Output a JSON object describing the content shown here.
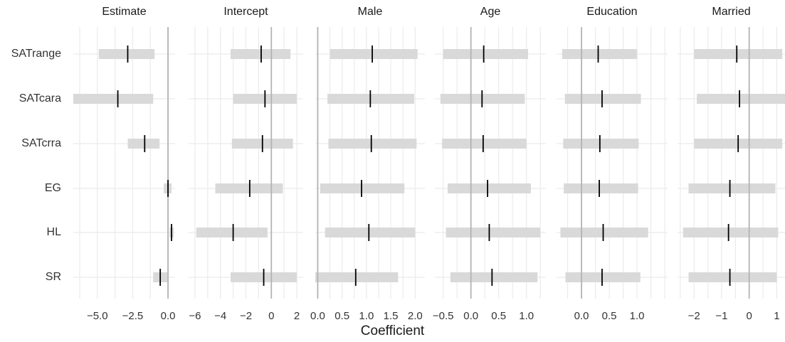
{
  "chart_data": {
    "type": "interval",
    "xlabel": "Coefficient",
    "rows": [
      "SATrange",
      "SATcara",
      "SATcrra",
      "EG",
      "HL",
      "SR"
    ],
    "colors": {
      "interval": "#d9d9d9",
      "zero_line": "#b3b3b3",
      "grid": "#ebebeb",
      "estimate": "#000000"
    },
    "panels": [
      {
        "title": "Estimate",
        "xlim": [
          -6.7,
          0.5
        ],
        "ticks": [
          -5.0,
          -2.5,
          0.0
        ],
        "tick_labels": [
          "−5.0",
          "−2.5",
          "0.0"
        ],
        "series": [
          {
            "row": "SATrange",
            "estimate": -2.85,
            "low": -4.9,
            "high": -0.95
          },
          {
            "row": "SATcara",
            "estimate": -3.55,
            "low": -6.7,
            "high": -1.05
          },
          {
            "row": "SATcrra",
            "estimate": -1.65,
            "low": -2.85,
            "high": -0.6
          },
          {
            "row": "EG",
            "estimate": 0.0,
            "low": -0.3,
            "high": 0.25
          },
          {
            "row": "HL",
            "estimate": 0.25,
            "low": 0.1,
            "high": 0.4
          },
          {
            "row": "SR",
            "estimate": -0.55,
            "low": -1.05,
            "high": -0.05
          }
        ]
      },
      {
        "title": "Intercept",
        "xlim": [
          -6.5,
          2.5
        ],
        "ticks": [
          -6,
          -4,
          -2,
          0,
          2
        ],
        "tick_labels": [
          "−6",
          "−4",
          "−2",
          "0",
          "2"
        ],
        "series": [
          {
            "row": "SATrange",
            "estimate": -0.8,
            "low": -3.2,
            "high": 1.5
          },
          {
            "row": "SATcara",
            "estimate": -0.5,
            "low": -3.0,
            "high": 2.0
          },
          {
            "row": "SATcrra",
            "estimate": -0.7,
            "low": -3.1,
            "high": 1.7
          },
          {
            "row": "EG",
            "estimate": -1.7,
            "low": -4.4,
            "high": 0.9
          },
          {
            "row": "HL",
            "estimate": -3.0,
            "low": -5.9,
            "high": -0.3
          },
          {
            "row": "SR",
            "estimate": -0.6,
            "low": -3.2,
            "high": 2.0
          }
        ]
      },
      {
        "title": "Male",
        "xlim": [
          -0.05,
          2.2
        ],
        "ticks": [
          0.0,
          0.5,
          1.0,
          1.5,
          2.0
        ],
        "tick_labels": [
          "0.0",
          "0.5",
          "1.0",
          "1.5",
          "2.0"
        ],
        "series": [
          {
            "row": "SATrange",
            "estimate": 1.12,
            "low": 0.25,
            "high": 2.05
          },
          {
            "row": "SATcara",
            "estimate": 1.08,
            "low": 0.2,
            "high": 1.98
          },
          {
            "row": "SATcrra",
            "estimate": 1.1,
            "low": 0.22,
            "high": 2.03
          },
          {
            "row": "EG",
            "estimate": 0.9,
            "low": 0.05,
            "high": 1.78
          },
          {
            "row": "HL",
            "estimate": 1.05,
            "low": 0.15,
            "high": 2.0
          },
          {
            "row": "SR",
            "estimate": 0.78,
            "low": -0.08,
            "high": 1.65
          }
        ]
      },
      {
        "title": "Age",
        "xlim": [
          -0.65,
          1.35
        ],
        "ticks": [
          -0.5,
          0.0,
          0.5,
          1.0
        ],
        "tick_labels": [
          "−0.5",
          "0.0",
          "0.5",
          "1.0"
        ],
        "series": [
          {
            "row": "SATrange",
            "estimate": 0.23,
            "low": -0.5,
            "high": 1.03
          },
          {
            "row": "SATcara",
            "estimate": 0.2,
            "low": -0.55,
            "high": 0.97
          },
          {
            "row": "SATcrra",
            "estimate": 0.22,
            "low": -0.52,
            "high": 1.0
          },
          {
            "row": "EG",
            "estimate": 0.3,
            "low": -0.42,
            "high": 1.08
          },
          {
            "row": "HL",
            "estimate": 0.33,
            "low": -0.45,
            "high": 1.25
          },
          {
            "row": "SR",
            "estimate": 0.38,
            "low": -0.37,
            "high": 1.2
          }
        ]
      },
      {
        "title": "Education",
        "xlim": [
          -0.45,
          1.55
        ],
        "ticks": [
          0.0,
          0.5,
          1.0
        ],
        "tick_labels": [
          "0.0",
          "0.5",
          "1.0"
        ],
        "series": [
          {
            "row": "SATrange",
            "estimate": 0.3,
            "low": -0.35,
            "high": 1.0
          },
          {
            "row": "SATcara",
            "estimate": 0.37,
            "low": -0.3,
            "high": 1.07
          },
          {
            "row": "SATcrra",
            "estimate": 0.33,
            "low": -0.33,
            "high": 1.03
          },
          {
            "row": "EG",
            "estimate": 0.32,
            "low": -0.32,
            "high": 1.02
          },
          {
            "row": "HL",
            "estimate": 0.39,
            "low": -0.38,
            "high": 1.2
          },
          {
            "row": "SR",
            "estimate": 0.37,
            "low": -0.29,
            "high": 1.06
          }
        ]
      },
      {
        "title": "Married",
        "xlim": [
          -2.6,
          1.3
        ],
        "ticks": [
          -2,
          -1,
          0,
          1
        ],
        "tick_labels": [
          "−2",
          "−1",
          "0",
          "1"
        ],
        "series": [
          {
            "row": "SATrange",
            "estimate": -0.45,
            "low": -2.0,
            "high": 1.2
          },
          {
            "row": "SATcara",
            "estimate": -0.35,
            "low": -1.9,
            "high": 1.3
          },
          {
            "row": "SATcrra",
            "estimate": -0.4,
            "low": -2.0,
            "high": 1.2
          },
          {
            "row": "EG",
            "estimate": -0.7,
            "low": -2.2,
            "high": 0.95
          },
          {
            "row": "HL",
            "estimate": -0.75,
            "low": -2.4,
            "high": 1.05
          },
          {
            "row": "SR",
            "estimate": -0.7,
            "low": -2.2,
            "high": 1.0
          }
        ]
      }
    ]
  }
}
